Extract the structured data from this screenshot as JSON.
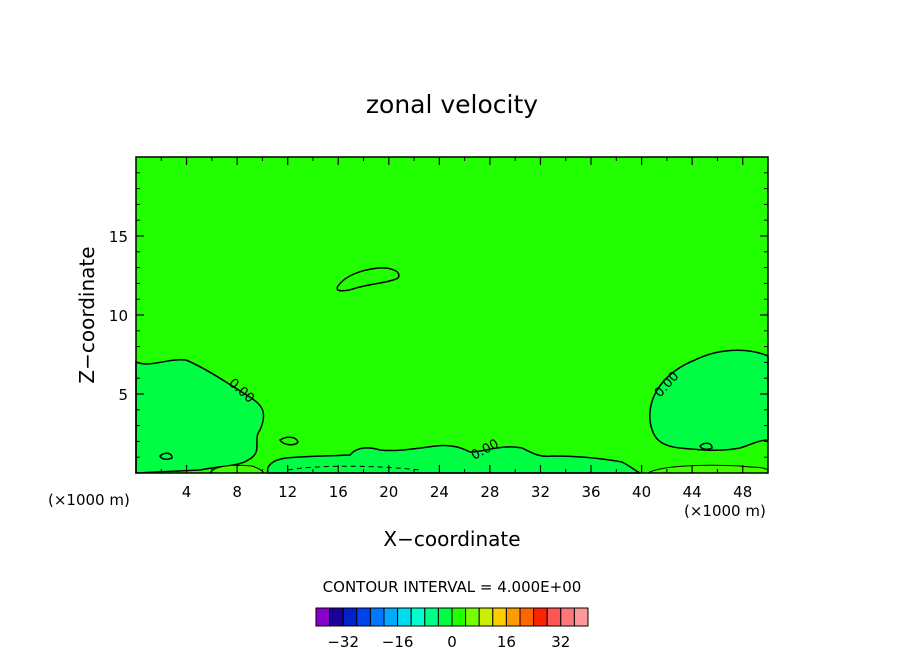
{
  "chart_data": {
    "type": "heatmap",
    "title": "zonal velocity",
    "xlabel": "X−coordinate",
    "ylabel": "Z−coordinate",
    "x_unit_left": "(×1000 m)",
    "x_unit_right": "(×1000 m)",
    "xlim": [
      0,
      50
    ],
    "ylim": [
      0,
      20
    ],
    "x_ticks": [
      4,
      8,
      12,
      16,
      20,
      24,
      28,
      32,
      36,
      40,
      44,
      48
    ],
    "y_ticks": [
      5,
      10,
      15
    ],
    "field_fill_color": "#22ff00",
    "contour_interval_label": "CONTOUR INTERVAL = 4.000E+00",
    "contour_labels": [
      "0.00",
      "0.00",
      "0.00"
    ],
    "colorbar": {
      "colors": [
        "#8800cc",
        "#1a0099",
        "#0022cc",
        "#0044ee",
        "#0077ff",
        "#00aaff",
        "#00ddee",
        "#00ffcc",
        "#00ff88",
        "#00ff44",
        "#22ff00",
        "#77ff00",
        "#ccee00",
        "#ffcc00",
        "#ff9900",
        "#ff6600",
        "#ff2200",
        "#ff5555",
        "#ff7777",
        "#ff9999"
      ],
      "tick_labels": [
        "−32",
        "−16",
        "0",
        "16",
        "32"
      ]
    }
  }
}
